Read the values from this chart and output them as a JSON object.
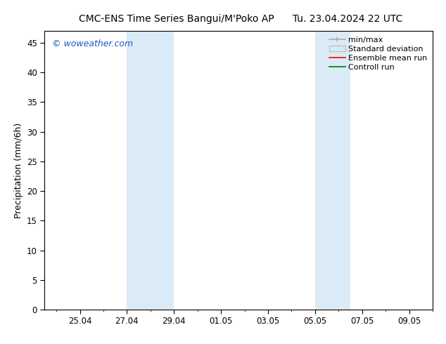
{
  "title_left": "CMC-ENS Time Series Bangui/M'Poko AP",
  "title_right": "Tu. 23.04.2024 22 UTC",
  "ylabel": "Precipitation (mm/6h)",
  "watermark": "© woweather.com",
  "ylim": [
    0,
    47
  ],
  "yticks": [
    0,
    5,
    10,
    15,
    20,
    25,
    30,
    35,
    40,
    45
  ],
  "xtick_labels": [
    "25.04",
    "27.04",
    "29.04",
    "01.05",
    "03.05",
    "05.05",
    "07.05",
    "09.05"
  ],
  "xtick_positions": [
    1,
    3,
    5,
    7,
    9,
    11,
    13,
    15
  ],
  "xlim": [
    -0.5,
    16.0
  ],
  "bg_color": "#ffffff",
  "plot_bg_color": "#ffffff",
  "band1_x0": 3,
  "band1_x1": 5,
  "band2_x0": 11,
  "band2_x1": 12.5,
  "band_color": "#daeaf7",
  "legend_labels": [
    "min/max",
    "Standard deviation",
    "Ensemble mean run",
    "Controll run"
  ],
  "legend_colors": [
    "#aaaaaa",
    "#cccccc",
    "#ff0000",
    "#007700"
  ],
  "title_fontsize": 10,
  "axis_label_fontsize": 9,
  "tick_fontsize": 8.5,
  "watermark_color": "#2255cc",
  "watermark_fontsize": 9,
  "legend_fontsize": 8
}
